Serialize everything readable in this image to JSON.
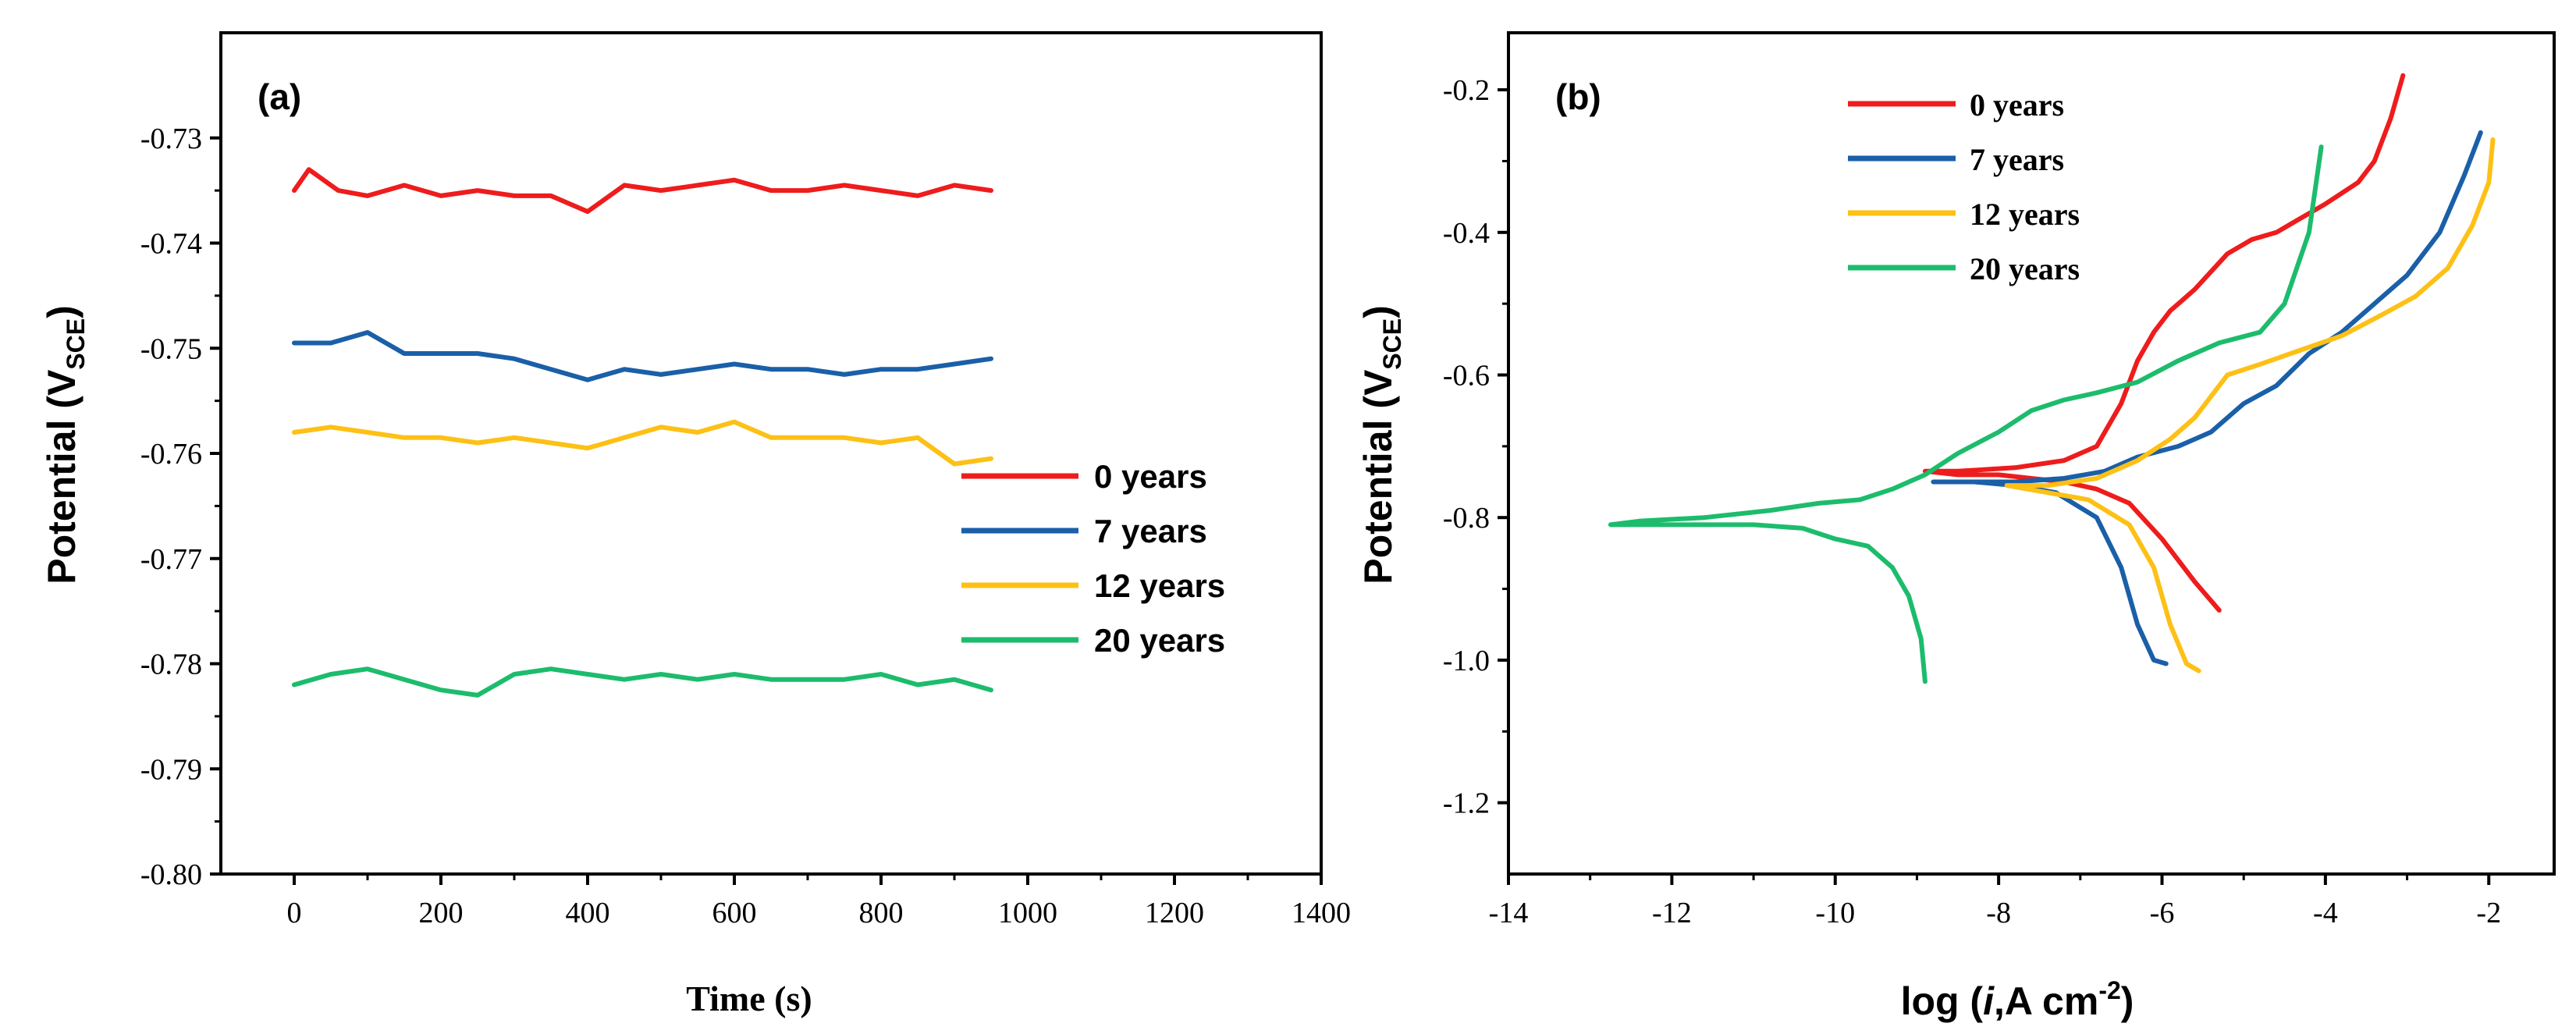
{
  "chart_data": [
    {
      "type": "line",
      "panel_label": "(a)",
      "xlabel": "Time (s)",
      "ylabel_main": "Potential (V",
      "ylabel_sub": "SCE",
      "ylabel_end": ")",
      "xlim": [
        -100,
        1400
      ],
      "ylim": [
        -0.8,
        -0.72
      ],
      "xticks": [
        0,
        200,
        400,
        600,
        800,
        1000,
        1200,
        1400
      ],
      "xtick_labels": [
        "0",
        "200",
        "400",
        "600",
        "800",
        "1000",
        "1200",
        "1400"
      ],
      "yticks": [
        -0.8,
        -0.79,
        -0.78,
        -0.77,
        -0.76,
        -0.75,
        -0.74,
        -0.73
      ],
      "ytick_labels": [
        "-0.80",
        "-0.79",
        "-0.78",
        "-0.77",
        "-0.76",
        "-0.75",
        "-0.74",
        "-0.73"
      ],
      "legend_position": "right-middle",
      "series": [
        {
          "name": "0 years",
          "color": "#ee1c1c",
          "x": [
            0,
            20,
            60,
            100,
            150,
            200,
            250,
            300,
            350,
            400,
            450,
            500,
            550,
            600,
            650,
            700,
            750,
            800,
            850,
            900,
            950
          ],
          "y": [
            -0.735,
            -0.733,
            -0.735,
            -0.7355,
            -0.7345,
            -0.7355,
            -0.735,
            -0.7355,
            -0.7355,
            -0.737,
            -0.7345,
            -0.735,
            -0.7345,
            -0.734,
            -0.735,
            -0.735,
            -0.7345,
            -0.735,
            -0.7355,
            -0.7345,
            -0.735
          ]
        },
        {
          "name": "7 years",
          "color": "#1a5fa8",
          "x": [
            0,
            50,
            100,
            150,
            200,
            250,
            300,
            350,
            400,
            450,
            500,
            550,
            600,
            650,
            700,
            750,
            800,
            850,
            900,
            950
          ],
          "y": [
            -0.7495,
            -0.7495,
            -0.7485,
            -0.7505,
            -0.7505,
            -0.7505,
            -0.751,
            -0.752,
            -0.753,
            -0.752,
            -0.7525,
            -0.752,
            -0.7515,
            -0.752,
            -0.752,
            -0.7525,
            -0.752,
            -0.752,
            -0.7515,
            -0.751
          ]
        },
        {
          "name": "12 years",
          "color": "#fdc015",
          "x": [
            0,
            50,
            100,
            150,
            200,
            250,
            300,
            350,
            400,
            450,
            500,
            550,
            600,
            650,
            700,
            750,
            800,
            850,
            900,
            950
          ],
          "y": [
            -0.758,
            -0.7575,
            -0.758,
            -0.7585,
            -0.7585,
            -0.759,
            -0.7585,
            -0.759,
            -0.7595,
            -0.7585,
            -0.7575,
            -0.758,
            -0.757,
            -0.7585,
            -0.7585,
            -0.7585,
            -0.759,
            -0.7585,
            -0.761,
            -0.7605
          ]
        },
        {
          "name": "20 years",
          "color": "#1cbc6c",
          "x": [
            0,
            50,
            100,
            150,
            200,
            250,
            300,
            350,
            400,
            450,
            500,
            550,
            600,
            650,
            700,
            750,
            800,
            850,
            900,
            950
          ],
          "y": [
            -0.782,
            -0.781,
            -0.7805,
            -0.7815,
            -0.7825,
            -0.783,
            -0.781,
            -0.7805,
            -0.781,
            -0.7815,
            -0.781,
            -0.7815,
            -0.781,
            -0.7815,
            -0.7815,
            -0.7815,
            -0.781,
            -0.782,
            -0.7815,
            -0.7825
          ]
        }
      ]
    },
    {
      "type": "line",
      "panel_label": "(b)",
      "xlabel_main": "log (",
      "xlabel_italic": "i",
      "xlabel_mid": ",A cm",
      "xlabel_sup": "-2",
      "xlabel_end": ")",
      "ylabel_main": "Potential (V",
      "ylabel_sub": "SCE",
      "ylabel_end": ")",
      "xlim": [
        -14,
        -1.2
      ],
      "ylim": [
        -1.3,
        -0.12
      ],
      "xticks": [
        -14,
        -12,
        -10,
        -8,
        -6,
        -4,
        -2
      ],
      "xtick_labels": [
        "-14",
        "-12",
        "-10",
        "-8",
        "-6",
        "-4",
        "-2"
      ],
      "yticks": [
        -1.2,
        -1.0,
        -0.8,
        -0.6,
        -0.4,
        -0.2
      ],
      "ytick_labels": [
        "-1.2",
        "-1.0",
        "-0.8",
        "-0.6",
        "-0.4",
        "-0.2"
      ],
      "legend_position": "top-center",
      "series": [
        {
          "name": "0 years",
          "color": "#ee1c1c",
          "x": [
            -5.3,
            -5.6,
            -6.0,
            -6.4,
            -6.8,
            -7.2,
            -7.6,
            -8.0,
            -8.5,
            -8.9,
            -8.5,
            -7.8,
            -7.2,
            -6.8,
            -6.5,
            -6.3,
            -6.1,
            -5.9,
            -5.6,
            -5.2,
            -4.9,
            -4.6,
            -4.3,
            -4.0,
            -3.6,
            -3.4,
            -3.2,
            -3.05
          ],
          "y": [
            -0.93,
            -0.89,
            -0.83,
            -0.78,
            -0.76,
            -0.75,
            -0.745,
            -0.74,
            -0.74,
            -0.735,
            -0.735,
            -0.73,
            -0.72,
            -0.7,
            -0.64,
            -0.58,
            -0.54,
            -0.51,
            -0.48,
            -0.43,
            -0.41,
            -0.4,
            -0.38,
            -0.36,
            -0.33,
            -0.3,
            -0.24,
            -0.18
          ]
        },
        {
          "name": "7 years",
          "color": "#1a5fa8",
          "x": [
            -5.95,
            -6.1,
            -6.3,
            -6.5,
            -6.8,
            -7.3,
            -7.8,
            -8.3,
            -8.8,
            -8.5,
            -7.8,
            -7.2,
            -6.7,
            -6.3,
            -5.8,
            -5.4,
            -5.0,
            -4.6,
            -4.2,
            -3.8,
            -3.4,
            -3.0,
            -2.6,
            -2.3,
            -2.1
          ],
          "y": [
            -1.005,
            -1.0,
            -0.95,
            -0.87,
            -0.8,
            -0.765,
            -0.755,
            -0.75,
            -0.75,
            -0.75,
            -0.75,
            -0.745,
            -0.735,
            -0.715,
            -0.7,
            -0.68,
            -0.64,
            -0.615,
            -0.57,
            -0.54,
            -0.5,
            -0.46,
            -0.4,
            -0.32,
            -0.26
          ]
        },
        {
          "name": "12 years",
          "color": "#fdc015",
          "x": [
            -5.55,
            -5.7,
            -5.9,
            -6.1,
            -6.4,
            -6.9,
            -7.4,
            -7.9,
            -7.4,
            -6.8,
            -6.3,
            -5.9,
            -5.6,
            -5.2,
            -4.8,
            -4.3,
            -3.8,
            -3.3,
            -2.9,
            -2.5,
            -2.2,
            -2.0,
            -1.95
          ],
          "y": [
            -1.015,
            -1.005,
            -0.95,
            -0.87,
            -0.81,
            -0.775,
            -0.765,
            -0.755,
            -0.755,
            -0.745,
            -0.72,
            -0.69,
            -0.66,
            -0.6,
            -0.585,
            -0.565,
            -0.545,
            -0.515,
            -0.49,
            -0.45,
            -0.39,
            -0.33,
            -0.27
          ]
        },
        {
          "name": "20 years",
          "color": "#1cbc6c",
          "x": [
            -8.9,
            -8.95,
            -9.1,
            -9.3,
            -9.6,
            -10.0,
            -10.4,
            -11.0,
            -11.7,
            -12.4,
            -12.75,
            -12.4,
            -11.6,
            -10.8,
            -10.2,
            -9.7,
            -9.3,
            -8.9,
            -8.5,
            -8.0,
            -7.6,
            -7.2,
            -6.8,
            -6.3,
            -5.8,
            -5.3,
            -4.8,
            -4.5,
            -4.2,
            -4.05
          ],
          "y": [
            -1.03,
            -0.97,
            -0.91,
            -0.87,
            -0.84,
            -0.83,
            -0.815,
            -0.81,
            -0.81,
            -0.81,
            -0.81,
            -0.805,
            -0.8,
            -0.79,
            -0.78,
            -0.775,
            -0.76,
            -0.74,
            -0.71,
            -0.68,
            -0.65,
            -0.635,
            -0.625,
            -0.61,
            -0.58,
            -0.555,
            -0.54,
            -0.5,
            -0.4,
            -0.28
          ]
        }
      ]
    }
  ]
}
